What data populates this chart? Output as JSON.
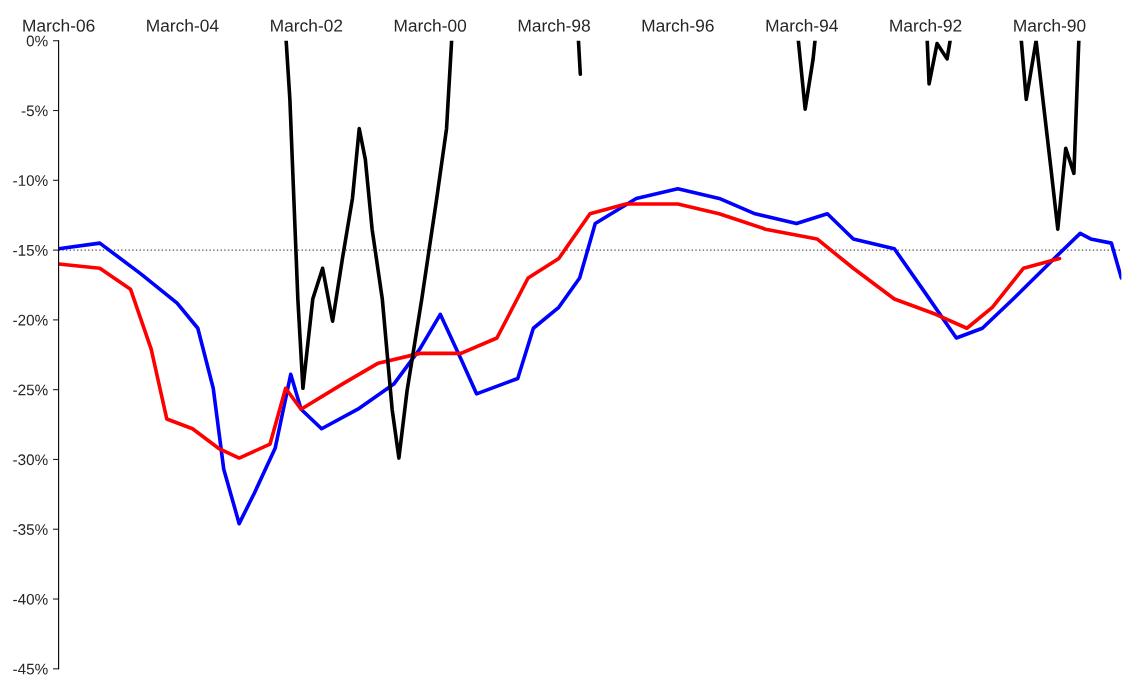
{
  "chart_data": {
    "type": "line",
    "xlim": [
      "2006-03",
      "1989-01"
    ],
    "xticks": [
      {
        "value": "2006-03",
        "label": "March-06"
      },
      {
        "value": "2004-03",
        "label": "March-04"
      },
      {
        "value": "2002-03",
        "label": "March-02"
      },
      {
        "value": "2000-03",
        "label": "March-00"
      },
      {
        "value": "1998-03",
        "label": "March-98"
      },
      {
        "value": "1996-03",
        "label": "March-96"
      },
      {
        "value": "1994-03",
        "label": "March-94"
      },
      {
        "value": "1992-03",
        "label": "March-92"
      },
      {
        "value": "1990-03",
        "label": "March-90"
      }
    ],
    "ylim": [
      -45,
      0
    ],
    "yticks": [
      {
        "value": 0,
        "label": "0%"
      },
      {
        "value": -5,
        "label": "-5%"
      },
      {
        "value": -10,
        "label": "-10%"
      },
      {
        "value": -15,
        "label": "-15%"
      },
      {
        "value": -20,
        "label": "-20%"
      },
      {
        "value": -25,
        "label": "-25%"
      },
      {
        "value": -30,
        "label": "-30%"
      },
      {
        "value": -35,
        "label": "-35%"
      },
      {
        "value": -40,
        "label": "-40%"
      },
      {
        "value": -45,
        "label": "-45%"
      }
    ],
    "grid": false,
    "ref_lines": [
      {
        "axis": "y",
        "value": -15,
        "color": "#555555",
        "line_style": "dotted"
      }
    ],
    "series": [
      {
        "color": "#0000ff",
        "x": [
          "2006-03",
          "2005-07",
          "2004-11",
          "2004-04",
          "2003-12",
          "2003-09",
          "2003-07",
          "2003-04",
          "2003-01",
          "2002-09",
          "2002-06",
          "2002-04",
          "2001-12",
          "2001-05",
          "2000-10",
          "2000-05",
          "2000-01",
          "1999-09",
          "1999-06",
          "1998-10",
          "1998-07",
          "1998-02",
          "1997-10",
          "1997-07",
          "1996-11",
          "1996-03",
          "1995-07",
          "1994-12",
          "1994-04",
          "1993-10",
          "1993-05",
          "1992-09",
          "1992-03",
          "1991-09",
          "1991-04",
          "1990-10",
          "1990-02",
          "1989-09",
          "1989-07",
          "1989-03",
          "1989-01"
        ],
        "values": [
          -14.9,
          -14.5,
          -16.7,
          -18.8,
          -20.6,
          -24.9,
          -30.7,
          -34.6,
          -32.4,
          -29.2,
          -23.9,
          -26.4,
          -27.8,
          -26.4,
          -24.6,
          -22.1,
          -19.6,
          -22.8,
          -25.3,
          -24.2,
          -20.6,
          -19.1,
          -17.0,
          -13.1,
          -11.3,
          -10.6,
          -11.3,
          -12.4,
          -13.1,
          -12.4,
          -14.2,
          -14.9,
          -18.1,
          -21.3,
          -20.6,
          -18.5,
          -15.6,
          -13.8,
          -14.2,
          -14.5,
          -17.0
        ]
      },
      {
        "color": "#ff0000",
        "x": [
          "2006-03",
          "2005-07",
          "2005-01",
          "2004-09",
          "2004-06",
          "2004-01",
          "2003-08",
          "2003-04",
          "2002-10",
          "2002-07",
          "2002-04",
          "2001-08",
          "2001-01",
          "2000-05",
          "1999-09",
          "1999-02",
          "1998-08",
          "1998-02",
          "1997-08",
          "1997-01",
          "1996-03",
          "1995-07",
          "1994-10",
          "1993-12",
          "1993-05",
          "1992-09",
          "1992-01",
          "1991-07",
          "1991-02",
          "1990-08",
          "1990-01"
        ],
        "values": [
          -16.0,
          -16.3,
          -17.8,
          -22.1,
          -27.1,
          -27.8,
          -29.2,
          -29.9,
          -28.9,
          -24.9,
          -26.4,
          -24.6,
          -23.1,
          -22.4,
          -22.4,
          -21.3,
          -17.0,
          -15.6,
          -12.4,
          -11.7,
          -11.7,
          -12.4,
          -13.5,
          -14.2,
          -16.3,
          -18.5,
          -19.6,
          -20.6,
          -19.1,
          -16.3,
          -15.6
        ]
      },
      {
        "color": "#000000",
        "x": [
          "2002-06-28",
          "2002-06-06",
          "2002-04-20",
          "2002-03-21",
          "2002-01-22",
          "2001-11-25",
          "2001-09-27",
          "2001-07-31",
          "2001-06-02",
          "2001-04-23",
          "2001-03-18",
          "2001-02-06",
          "2000-12-08",
          "2000-10-11",
          "2000-09-01",
          "2000-07-15",
          "2000-04-19",
          "2000-01-22",
          "1999-11-25",
          "1999-10-26",
          "1999-01-01",
          "1997-10-08",
          "1997-09-27",
          "1996-01-01",
          "1994-03-21",
          "1994-02-09",
          "1993-12-24",
          "1993-12-13",
          "1993-07-01",
          "1992-02-20",
          "1992-02-09",
          "1991-12-24",
          "1991-10-26",
          "1991-10-08",
          "1991-01-01",
          "1990-08-14",
          "1990-07-16",
          "1990-05-19",
          "1990-02-20",
          "1990-01-11",
          "1989-11-25",
          "1989-10-08",
          "1989-09-09"
        ],
        "values": [
          0,
          -4.2,
          -18.5,
          -24.9,
          -18.5,
          -16.3,
          -20.1,
          -15.6,
          -11.3,
          -6.3,
          -8.5,
          -13.5,
          -18.5,
          -26.4,
          -29.9,
          -25.1,
          -18.5,
          -11.3,
          -6.3,
          0,
          null,
          0,
          -2.4,
          null,
          0,
          -4.9,
          -1.3,
          0,
          null,
          0,
          -3.1,
          -0.2,
          -1.3,
          0,
          null,
          0,
          -4.2,
          0,
          -9.2,
          -13.5,
          -7.7,
          -9.5,
          0
        ]
      }
    ]
  }
}
